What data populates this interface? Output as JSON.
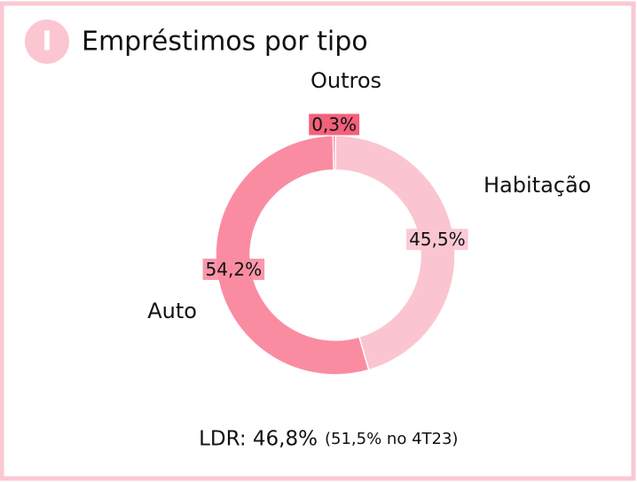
{
  "chart_data": {
    "type": "donut",
    "badge": "I",
    "title": "Empréstimos por tipo",
    "categories": [
      "Habitação",
      "Auto",
      "Outros"
    ],
    "values": [
      45.5,
      54.2,
      0.3
    ],
    "value_labels": [
      "45,5%",
      "54,2%",
      "0,3%"
    ],
    "colors": [
      "#fac5d0",
      "#fa8ca2",
      "#f2506c"
    ],
    "annotation": "LDR: 46,8%",
    "annotation_detail": "(51,5% no 4T23)"
  }
}
